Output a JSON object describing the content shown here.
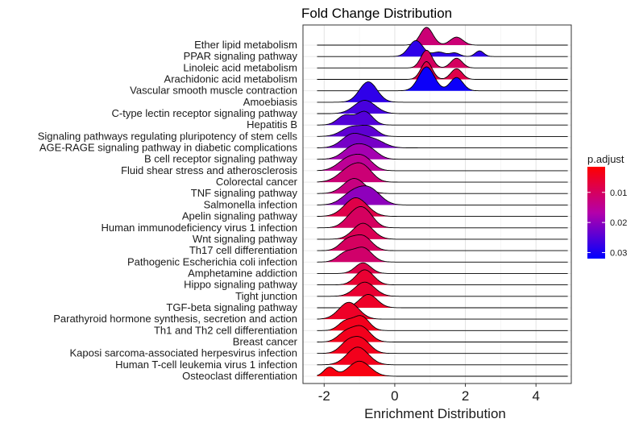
{
  "chart_data": {
    "type": "ridgeline",
    "title": "Fold Change Distribution",
    "xlabel": "Enrichment Distribution",
    "ylabel": "",
    "xlim": [
      -2.6,
      5.0
    ],
    "x_ticks": [
      -2,
      0,
      2,
      4
    ],
    "grid": true,
    "legend": {
      "title": "p.adjust",
      "placement": "right",
      "min": 0.0015,
      "max": 0.032,
      "ticks": [
        {
          "value": 0.01,
          "label": "0.01"
        },
        {
          "value": 0.02,
          "label": "0.02"
        },
        {
          "value": 0.03,
          "label": "0.03"
        }
      ],
      "low_color": "#ff0000",
      "high_color": "#0000ff"
    },
    "series": [
      {
        "label": "Ether lipid metabolism",
        "p_adjust": 0.012,
        "peaks": [
          [
            0.9,
            0.18,
            1.0
          ],
          [
            1.75,
            0.18,
            0.45
          ]
        ]
      },
      {
        "label": "PPAR signaling pathway",
        "p_adjust": 0.028,
        "peaks": [
          [
            0.6,
            0.2,
            0.9
          ],
          [
            1.25,
            0.18,
            0.25
          ],
          [
            1.7,
            0.14,
            0.2
          ],
          [
            2.4,
            0.12,
            0.32
          ]
        ]
      },
      {
        "label": "Linoleic acid metabolism",
        "p_adjust": 0.01,
        "peaks": [
          [
            0.9,
            0.16,
            1.0
          ],
          [
            1.75,
            0.16,
            0.55
          ]
        ]
      },
      {
        "label": "Arachidonic acid metabolism",
        "p_adjust": 0.008,
        "peaks": [
          [
            0.9,
            0.16,
            1.0
          ],
          [
            1.75,
            0.16,
            0.6
          ]
        ]
      },
      {
        "label": "Vascular smooth muscle contraction",
        "p_adjust": 0.031,
        "peaks": [
          [
            0.9,
            0.22,
            1.35
          ],
          [
            1.75,
            0.18,
            0.75
          ]
        ]
      },
      {
        "label": "Amoebiasis",
        "p_adjust": 0.028,
        "peaks": [
          [
            -0.75,
            0.25,
            1.15
          ]
        ]
      },
      {
        "label": "C-type lectin receptor signaling pathway",
        "p_adjust": 0.026,
        "peaks": [
          [
            -0.85,
            0.3,
            0.75
          ]
        ]
      },
      {
        "label": "Hepatitis B",
        "p_adjust": 0.025,
        "peaks": [
          [
            -1.4,
            0.22,
            0.55
          ],
          [
            -0.85,
            0.22,
            0.75
          ]
        ]
      },
      {
        "label": "Signaling pathways regulating pluripotency of stem cells",
        "p_adjust": 0.024,
        "peaks": [
          [
            -1.2,
            0.3,
            0.55
          ],
          [
            -0.7,
            0.22,
            0.45
          ]
        ]
      },
      {
        "label": "AGE-RAGE signaling pathway in diabetic complications",
        "p_adjust": 0.022,
        "peaks": [
          [
            -1.2,
            0.3,
            0.75
          ],
          [
            -0.6,
            0.3,
            0.45
          ]
        ]
      },
      {
        "label": "B cell receptor signaling pathway",
        "p_adjust": 0.018,
        "peaks": [
          [
            -1.15,
            0.3,
            0.75
          ],
          [
            -0.7,
            0.25,
            0.45
          ]
        ]
      },
      {
        "label": "Fluid shear stress and atherosclerosis",
        "p_adjust": 0.015,
        "peaks": [
          [
            -1.3,
            0.3,
            0.7
          ],
          [
            -0.85,
            0.25,
            0.6
          ]
        ]
      },
      {
        "label": "Colorectal cancer",
        "p_adjust": 0.012,
        "peaks": [
          [
            -1.25,
            0.32,
            0.8
          ],
          [
            -0.85,
            0.25,
            0.6
          ]
        ]
      },
      {
        "label": "TNF signaling pathway",
        "p_adjust": 0.013,
        "peaks": [
          [
            -1.15,
            0.3,
            0.85
          ]
        ]
      },
      {
        "label": "Salmonella infection",
        "p_adjust": 0.02,
        "peaks": [
          [
            -1.2,
            0.3,
            0.65
          ],
          [
            -0.7,
            0.3,
            0.85
          ]
        ]
      },
      {
        "label": "Apelin signaling pathway",
        "p_adjust": 0.008,
        "peaks": [
          [
            -1.1,
            0.32,
            1.05
          ]
        ]
      },
      {
        "label": "Human immunodeficiency virus 1 infection",
        "p_adjust": 0.01,
        "peaks": [
          [
            -1.2,
            0.25,
            0.6
          ],
          [
            -0.85,
            0.25,
            0.9
          ]
        ]
      },
      {
        "label": "Wnt signaling pathway",
        "p_adjust": 0.009,
        "peaks": [
          [
            -0.9,
            0.28,
            0.9
          ]
        ]
      },
      {
        "label": "Th17 cell differentiation",
        "p_adjust": 0.01,
        "peaks": [
          [
            -1.35,
            0.22,
            0.55
          ],
          [
            -0.9,
            0.25,
            0.8
          ]
        ]
      },
      {
        "label": "Pathogenic Escherichia coli infection",
        "p_adjust": 0.011,
        "peaks": [
          [
            -1.4,
            0.22,
            0.5
          ],
          [
            -0.9,
            0.25,
            0.8
          ]
        ]
      },
      {
        "label": "Amphetamine addiction",
        "p_adjust": 0.008,
        "peaks": [
          [
            -0.9,
            0.22,
            0.6
          ]
        ]
      },
      {
        "label": "Hippo signaling pathway",
        "p_adjust": 0.006,
        "peaks": [
          [
            -0.85,
            0.25,
            0.85
          ]
        ]
      },
      {
        "label": "Tight junction",
        "p_adjust": 0.006,
        "peaks": [
          [
            -0.85,
            0.28,
            0.8
          ]
        ]
      },
      {
        "label": "TGF-beta signaling pathway",
        "p_adjust": 0.005,
        "peaks": [
          [
            -0.75,
            0.25,
            0.75
          ]
        ]
      },
      {
        "label": "Parathyroid hormone synthesis, secretion and action",
        "p_adjust": 0.005,
        "peaks": [
          [
            -1.3,
            0.28,
            0.95
          ]
        ]
      },
      {
        "label": "Th1 and Th2 cell differentiation",
        "p_adjust": 0.004,
        "peaks": [
          [
            -1.4,
            0.2,
            0.5
          ],
          [
            -0.95,
            0.22,
            0.8
          ]
        ]
      },
      {
        "label": "Breast cancer",
        "p_adjust": 0.004,
        "peaks": [
          [
            -1.4,
            0.22,
            0.5
          ],
          [
            -0.95,
            0.25,
            0.85
          ]
        ]
      },
      {
        "label": "Kaposi sarcoma-associated herpesvirus infection",
        "p_adjust": 0.004,
        "peaks": [
          [
            -1.35,
            0.22,
            0.55
          ],
          [
            -0.95,
            0.25,
            0.8
          ]
        ]
      },
      {
        "label": "Human T-cell leukemia virus 1 infection",
        "p_adjust": 0.004,
        "peaks": [
          [
            -1.05,
            0.3,
            1.0
          ]
        ]
      },
      {
        "label": "Osteoclast differentiation",
        "p_adjust": 0.003,
        "peaks": [
          [
            -1.85,
            0.16,
            0.5
          ],
          [
            -1.0,
            0.3,
            0.85
          ]
        ]
      }
    ]
  }
}
